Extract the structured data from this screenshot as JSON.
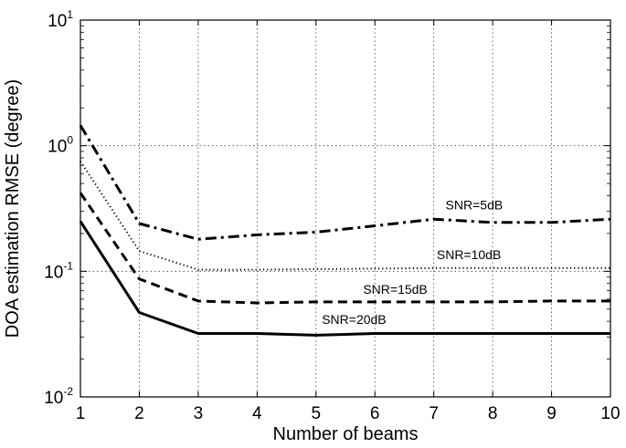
{
  "chart_data": {
    "type": "line",
    "xlabel": "Number of beams",
    "ylabel": "DOA estimation RMSE (degree)",
    "yscale": "log",
    "xlim": [
      1,
      10
    ],
    "ylim": [
      0.01,
      10
    ],
    "grid": true,
    "legend": "none",
    "x": [
      1,
      2,
      3,
      4,
      5,
      6,
      7,
      8,
      9,
      10
    ],
    "x_ticks": [
      "1",
      "2",
      "3",
      "4",
      "5",
      "6",
      "7",
      "8",
      "9",
      "10"
    ],
    "y_ticks": [
      {
        "base": "10",
        "exp": "-2"
      },
      {
        "base": "10",
        "exp": "-1"
      },
      {
        "base": "10",
        "exp": "0"
      },
      {
        "base": "10",
        "exp": "1"
      }
    ],
    "series": [
      {
        "name": "SNR=5dB",
        "style": "dashdot",
        "values": [
          1.45,
          0.24,
          0.18,
          0.195,
          0.205,
          0.23,
          0.26,
          0.245,
          0.245,
          0.26
        ]
      },
      {
        "name": "SNR=10dB",
        "style": "dotted",
        "values": [
          0.75,
          0.145,
          0.103,
          0.103,
          0.104,
          0.105,
          0.106,
          0.106,
          0.106,
          0.106
        ]
      },
      {
        "name": "SNR=15dB",
        "style": "dashed",
        "values": [
          0.42,
          0.087,
          0.058,
          0.056,
          0.057,
          0.057,
          0.057,
          0.057,
          0.058,
          0.058
        ]
      },
      {
        "name": "SNR=20dB",
        "style": "solid",
        "values": [
          0.25,
          0.047,
          0.032,
          0.032,
          0.031,
          0.032,
          0.032,
          0.032,
          0.032,
          0.032
        ]
      }
    ],
    "annotations": [
      {
        "text": "SNR=5dB",
        "x": 7.2,
        "y": 0.31
      },
      {
        "text": "SNR=10dB",
        "x": 7.05,
        "y": 0.125
      },
      {
        "text": "SNR=15dB",
        "x": 5.8,
        "y": 0.066
      },
      {
        "text": "SNR=20dB",
        "x": 5.1,
        "y": 0.038
      }
    ]
  }
}
